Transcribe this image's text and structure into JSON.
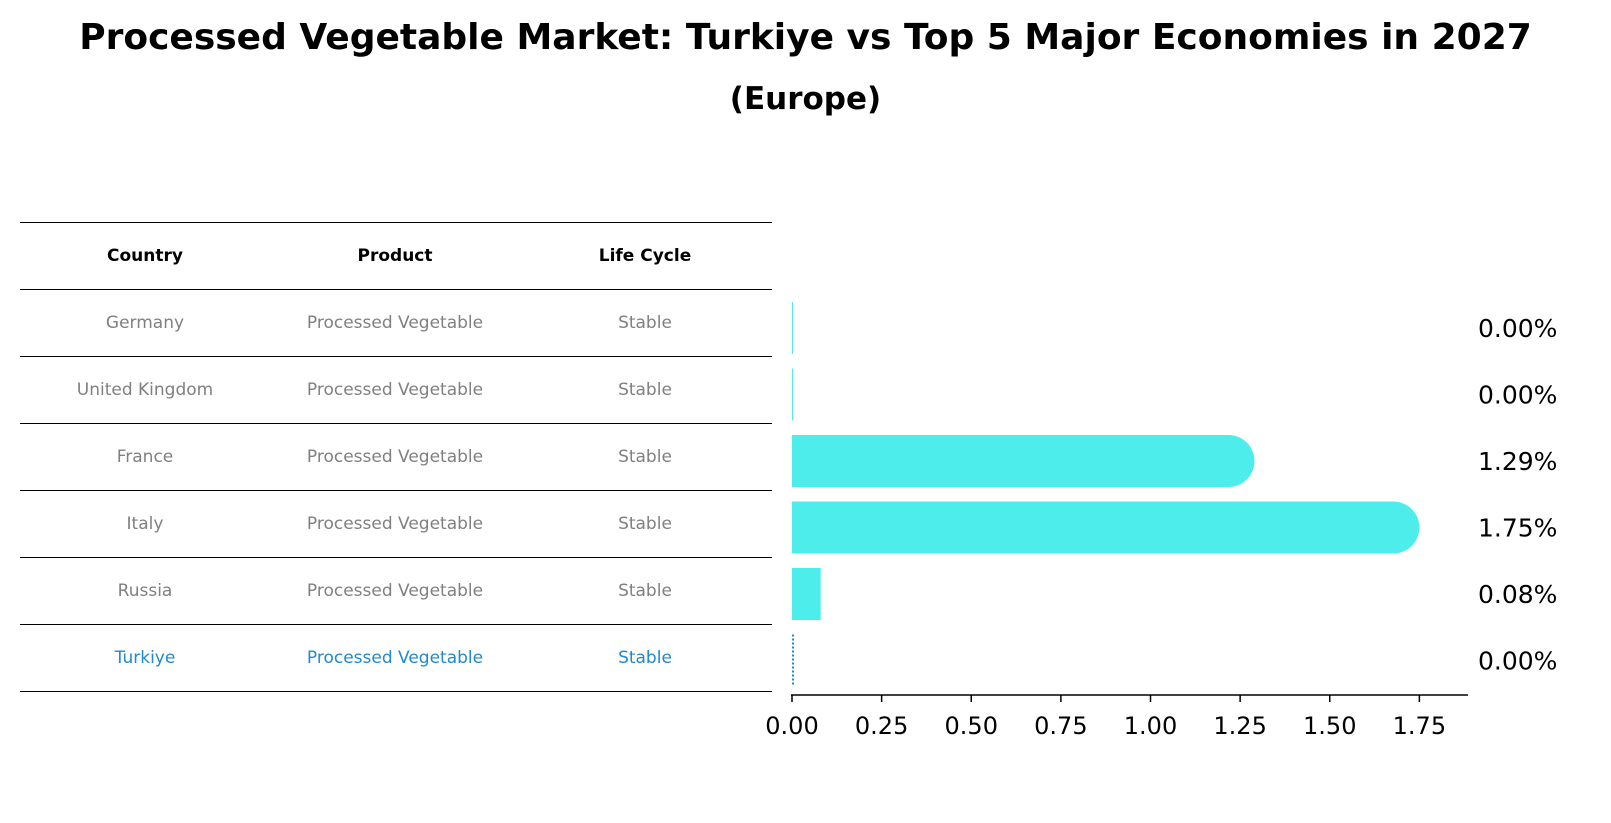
{
  "title": "Processed Vegetable Market: Turkiye vs Top 5 Major Economies in 2027",
  "subtitle": "(Europe)",
  "colors": {
    "bar": "#4DEDEB",
    "highlight": "#1F8AD0",
    "text_muted": "#808080"
  },
  "table": {
    "headers": [
      "Country",
      "Product",
      "Life Cycle"
    ],
    "rows": [
      [
        "Germany",
        "Processed Vegetable",
        "Stable"
      ],
      [
        "United Kingdom",
        "Processed Vegetable",
        "Stable"
      ],
      [
        "France",
        "Processed Vegetable",
        "Stable"
      ],
      [
        "Italy",
        "Processed Vegetable",
        "Stable"
      ],
      [
        "Russia",
        "Processed Vegetable",
        "Stable"
      ],
      [
        "Turkiye",
        "Processed Vegetable",
        "Stable"
      ]
    ]
  },
  "chart_data": {
    "type": "bar",
    "orientation": "horizontal",
    "categories": [
      "Germany",
      "United Kingdom",
      "France",
      "Italy",
      "Russia",
      "Turkiye"
    ],
    "values": [
      0.0,
      0.0,
      1.29,
      1.75,
      0.08,
      0.0
    ],
    "value_labels": [
      "0.00%",
      "0.00%",
      "1.29%",
      "1.75%",
      "0.08%",
      "0.00%"
    ],
    "xlim": [
      0,
      1.85
    ],
    "xticks": [
      0.0,
      0.25,
      0.5,
      0.75,
      1.0,
      1.25,
      1.5,
      1.75
    ],
    "xtick_labels": [
      "0.00",
      "0.25",
      "0.50",
      "0.75",
      "1.00",
      "1.25",
      "1.50",
      "1.75"
    ],
    "highlight_category": "Turkiye"
  }
}
